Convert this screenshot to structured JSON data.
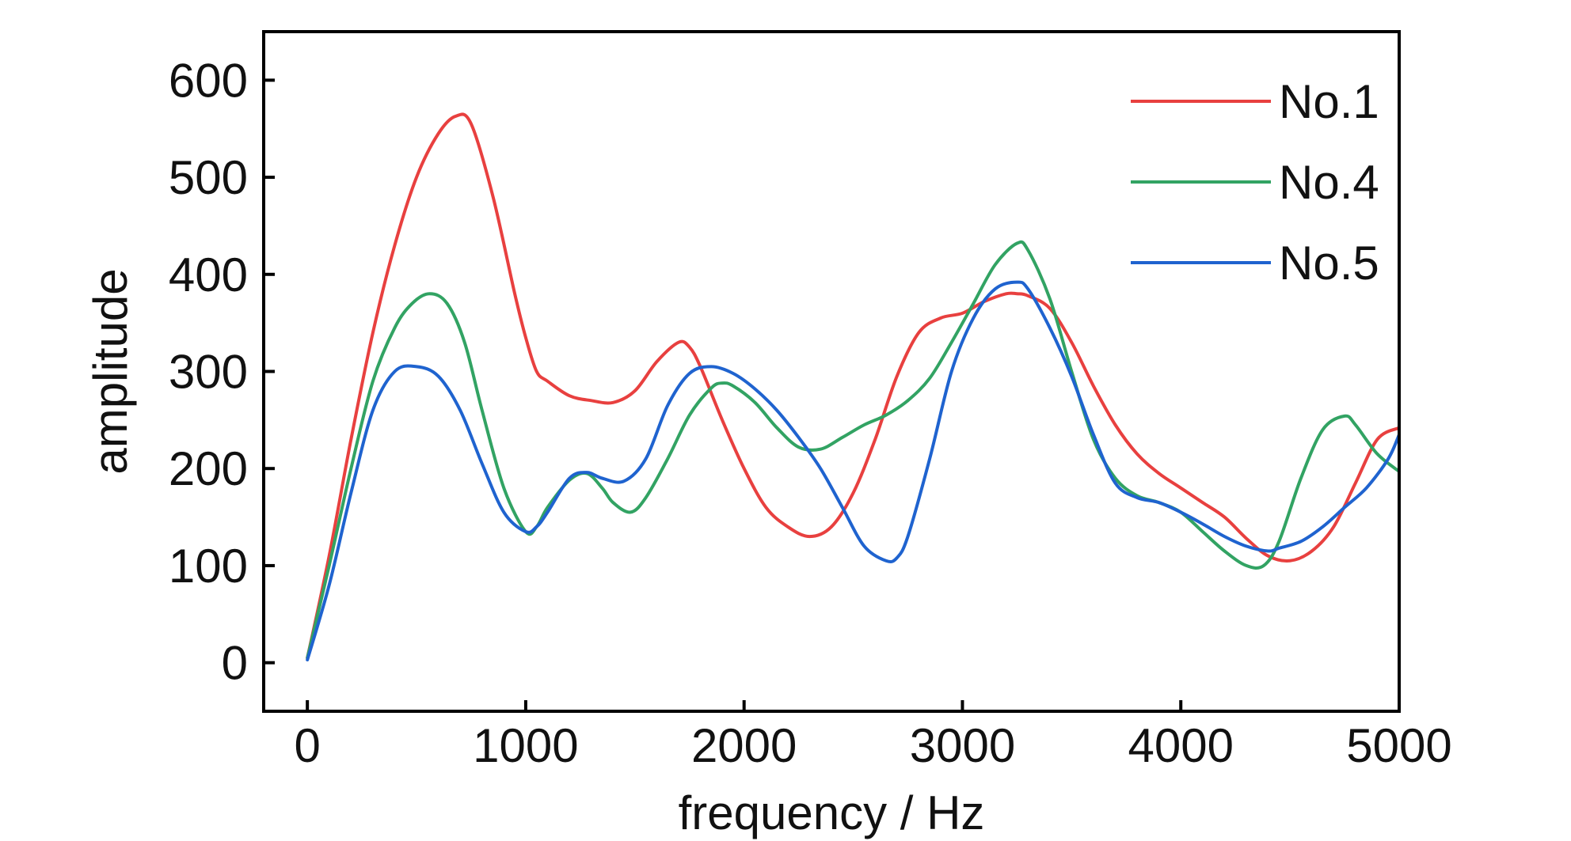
{
  "chart_data": {
    "type": "line",
    "title": "",
    "xlabel": "frequency / Hz",
    "ylabel": "amplitude",
    "xlim": [
      -200,
      5000
    ],
    "ylim": [
      -50,
      650
    ],
    "xticks": [
      0,
      1000,
      2000,
      3000,
      4000,
      5000
    ],
    "yticks": [
      0,
      100,
      200,
      300,
      400,
      500,
      600
    ],
    "grid": false,
    "legend_position": "top-right",
    "series": [
      {
        "name": "No.1",
        "color": "#e8403f",
        "x": [
          0,
          100,
          200,
          300,
          400,
          500,
          600,
          680,
          750,
          850,
          950,
          1000,
          1050,
          1100,
          1200,
          1300,
          1400,
          1500,
          1600,
          1700,
          1750,
          1800,
          1900,
          2000,
          2100,
          2200,
          2300,
          2400,
          2500,
          2600,
          2700,
          2800,
          2900,
          3000,
          3100,
          3200,
          3250,
          3300,
          3400,
          3500,
          3600,
          3700,
          3800,
          3900,
          4000,
          4100,
          4200,
          4300,
          4400,
          4500,
          4600,
          4700,
          4800,
          4900,
          5000
        ],
        "y": [
          5,
          110,
          230,
          340,
          430,
          500,
          545,
          563,
          555,
          480,
          380,
          335,
          300,
          290,
          275,
          270,
          268,
          280,
          310,
          330,
          325,
          305,
          250,
          200,
          160,
          140,
          130,
          140,
          175,
          230,
          295,
          340,
          355,
          360,
          372,
          380,
          380,
          378,
          365,
          330,
          285,
          245,
          215,
          195,
          180,
          165,
          150,
          128,
          110,
          105,
          115,
          140,
          185,
          230,
          242
        ]
      },
      {
        "name": "No.4",
        "color": "#32a363",
        "x": [
          0,
          100,
          200,
          300,
          400,
          480,
          560,
          640,
          720,
          800,
          900,
          1000,
          1050,
          1100,
          1200,
          1280,
          1350,
          1400,
          1480,
          1550,
          1650,
          1750,
          1850,
          1900,
          1950,
          2050,
          2150,
          2250,
          2350,
          2450,
          2550,
          2650,
          2750,
          2850,
          2950,
          3050,
          3150,
          3250,
          3300,
          3400,
          3500,
          3600,
          3700,
          3800,
          3900,
          4000,
          4100,
          4200,
          4300,
          4380,
          4450,
          4550,
          4650,
          4750,
          4800,
          4900,
          5000
        ],
        "y": [
          5,
          100,
          200,
          290,
          345,
          370,
          380,
          370,
          330,
          260,
          180,
          135,
          140,
          160,
          188,
          195,
          180,
          165,
          155,
          170,
          210,
          255,
          283,
          288,
          285,
          268,
          242,
          222,
          220,
          232,
          245,
          255,
          270,
          293,
          330,
          370,
          410,
          432,
          425,
          375,
          300,
          230,
          190,
          172,
          165,
          155,
          135,
          115,
          100,
          100,
          125,
          190,
          240,
          254,
          245,
          215,
          197
        ]
      },
      {
        "name": "No.5",
        "color": "#1f63cf",
        "x": [
          0,
          100,
          200,
          300,
          400,
          500,
          600,
          700,
          800,
          900,
          1000,
          1050,
          1100,
          1200,
          1280,
          1350,
          1450,
          1550,
          1650,
          1750,
          1850,
          1950,
          2050,
          2150,
          2250,
          2350,
          2450,
          2550,
          2650,
          2700,
          2750,
          2850,
          2950,
          3050,
          3150,
          3250,
          3300,
          3400,
          3500,
          3600,
          3700,
          3800,
          3900,
          4000,
          4100,
          4200,
          4300,
          4400,
          4450,
          4550,
          4650,
          4750,
          4850,
          4950,
          5000
        ],
        "y": [
          3,
          80,
          175,
          260,
          300,
          305,
          295,
          260,
          205,
          155,
          135,
          140,
          155,
          190,
          196,
          190,
          187,
          210,
          265,
          298,
          305,
          298,
          282,
          260,
          232,
          200,
          160,
          120,
          105,
          108,
          130,
          210,
          300,
          355,
          385,
          392,
          385,
          345,
          295,
          235,
          185,
          170,
          165,
          155,
          143,
          130,
          120,
          115,
          118,
          125,
          140,
          160,
          180,
          210,
          235
        ]
      }
    ]
  }
}
